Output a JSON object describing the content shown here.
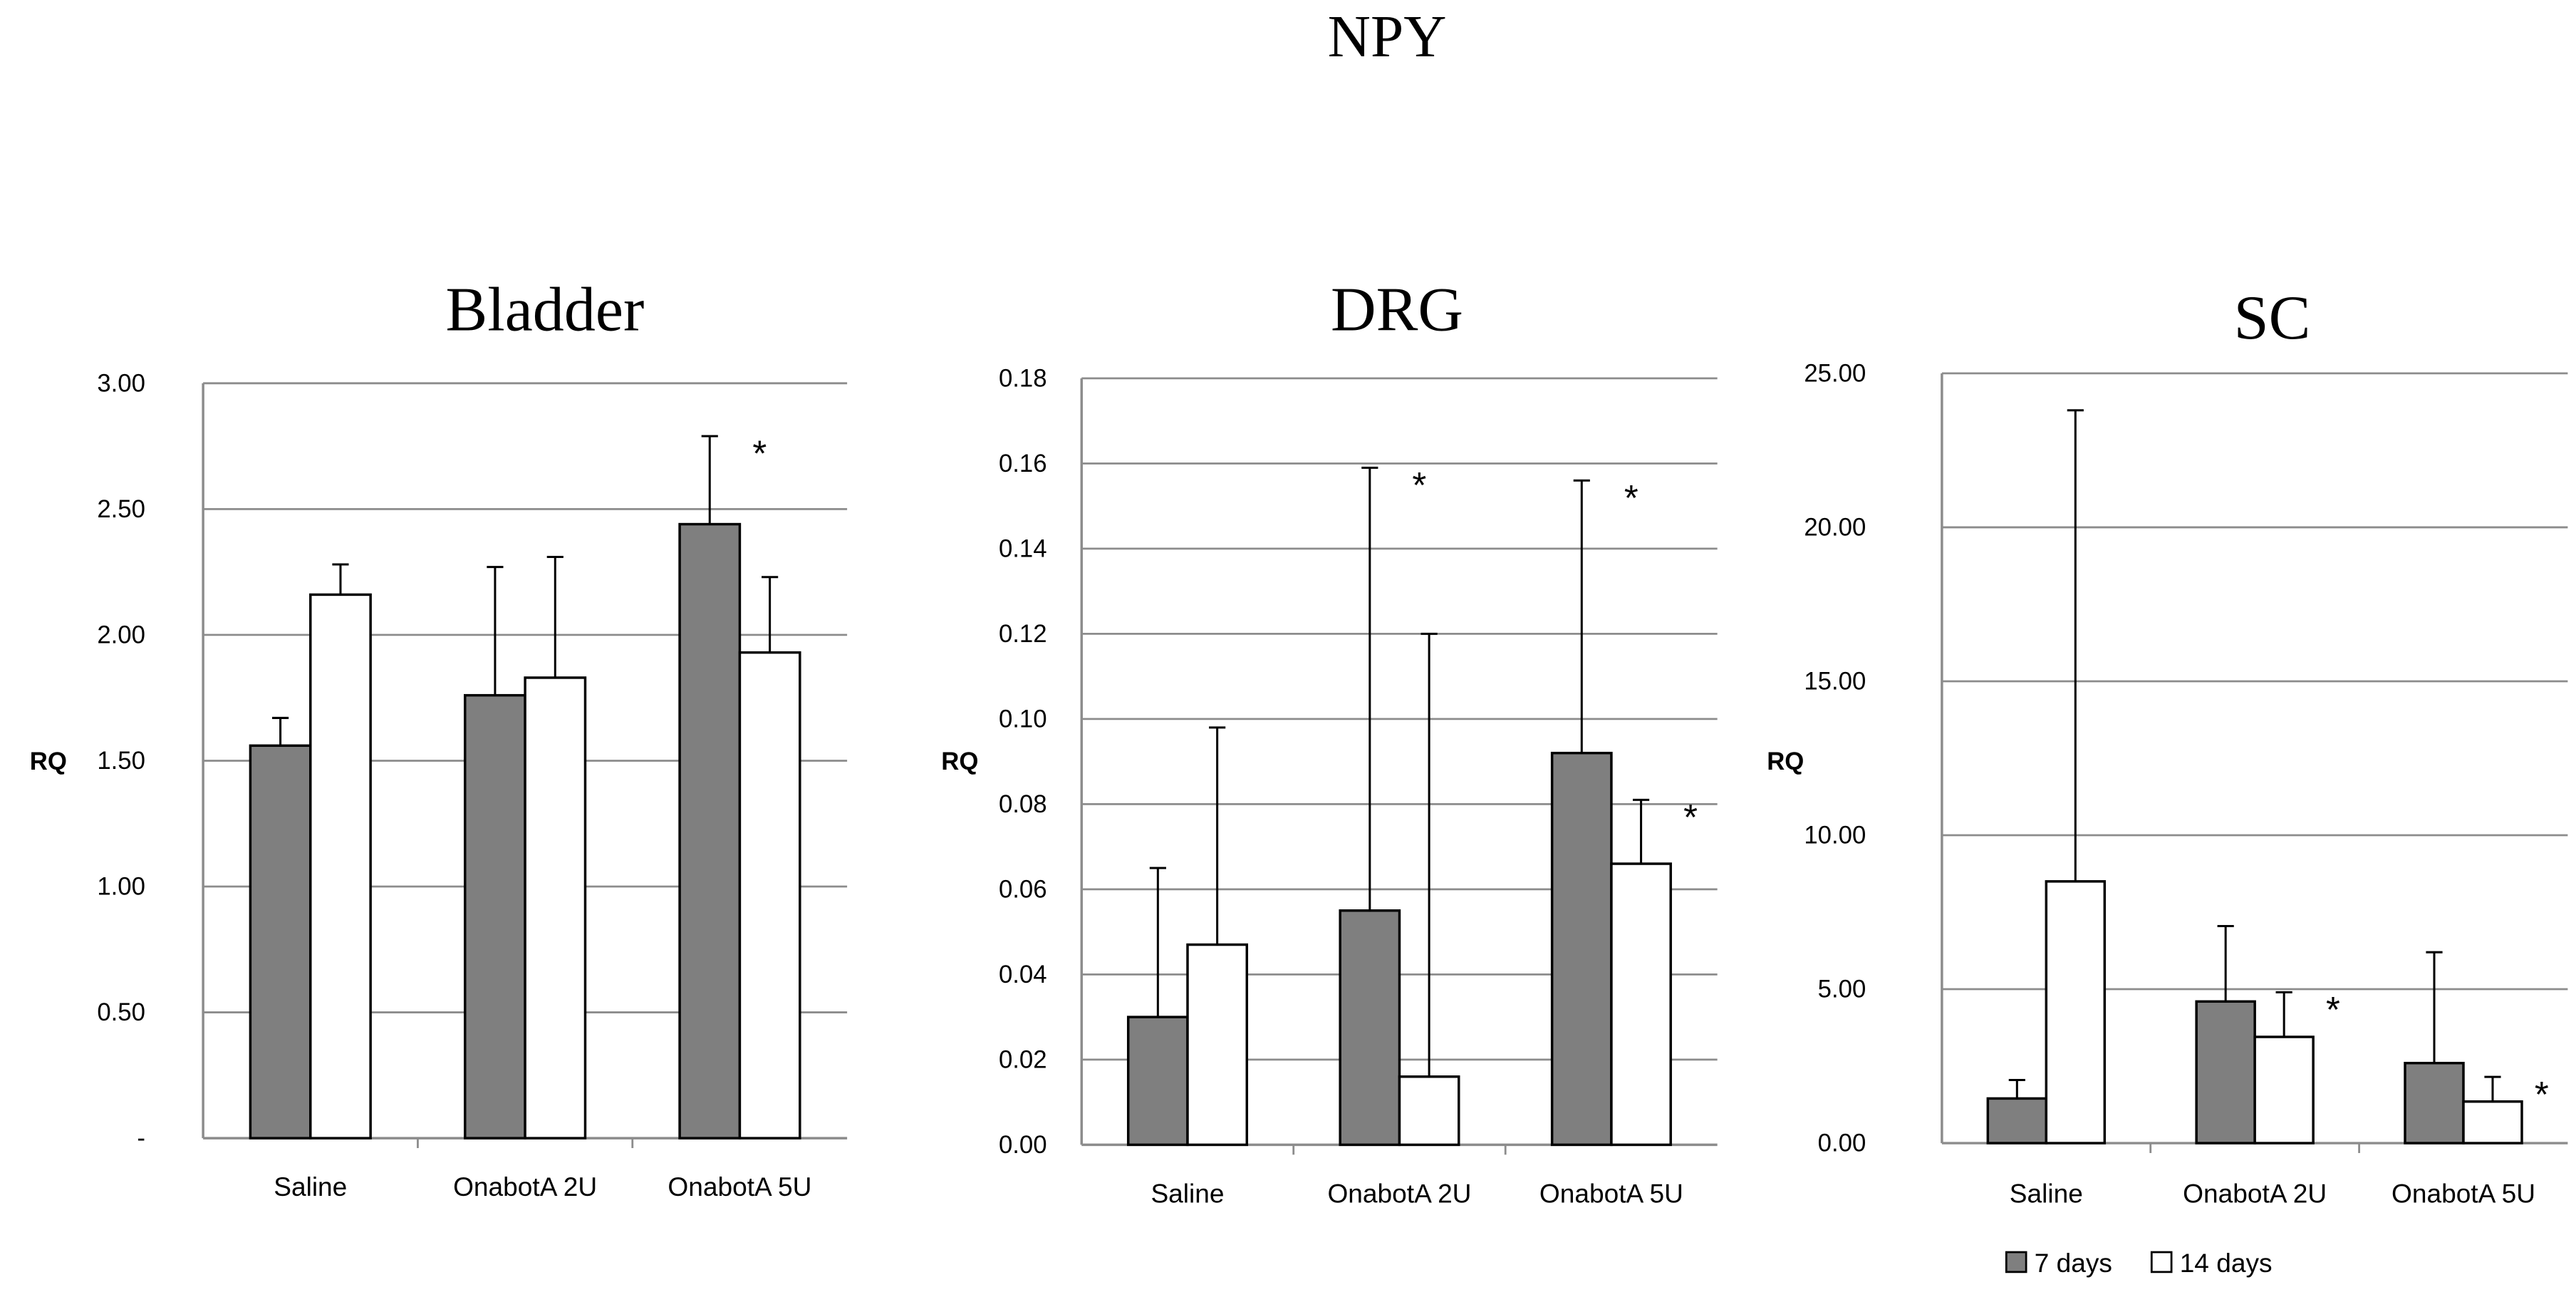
{
  "figure_title": "NPY",
  "legend": [
    {
      "label": "7 days",
      "color": "#7f7f7f"
    },
    {
      "label": "14 days",
      "color": "#ffffff"
    }
  ],
  "colors": {
    "series_7_days": "#7f7f7f",
    "series_14_days": "#ffffff",
    "gridline": "#8c8c8c",
    "edge": "#000000"
  },
  "chart_data": [
    {
      "type": "bar",
      "title": "Bladder",
      "ylabel": "RQ",
      "xlabel": "",
      "categories": [
        "Saline",
        "OnabotA 2U",
        "OnabotA 5U"
      ],
      "ylim": [
        0,
        3
      ],
      "yticks": [
        0,
        0.5,
        1,
        1.5,
        2,
        2.5,
        3
      ],
      "ytick_labels": [
        "-",
        "0.50",
        "1.00",
        "1.50",
        "2.00",
        "2.50",
        "3.00"
      ],
      "grid": true,
      "series": [
        {
          "name": "7 days",
          "values": [
            1.56,
            1.76,
            2.44
          ],
          "error_upper": [
            0.11,
            0.51,
            0.35
          ],
          "significant": [
            false,
            false,
            true
          ]
        },
        {
          "name": "14 days",
          "values": [
            2.16,
            1.83,
            1.93
          ],
          "error_upper": [
            0.12,
            0.48,
            0.3
          ],
          "significant": [
            false,
            false,
            false
          ]
        }
      ],
      "annotations": [
        "*"
      ]
    },
    {
      "type": "bar",
      "title": "DRG",
      "ylabel": "RQ",
      "xlabel": "",
      "categories": [
        "Saline",
        "OnabotA 2U",
        "OnabotA 5U"
      ],
      "ylim": [
        0,
        0.18
      ],
      "yticks": [
        0,
        0.02,
        0.04,
        0.06,
        0.08,
        0.1,
        0.12,
        0.14,
        0.16,
        0.18
      ],
      "ytick_labels": [
        "0.00",
        "0.02",
        "0.04",
        "0.06",
        "0.08",
        "0.10",
        "0.12",
        "0.14",
        "0.16",
        "0.18"
      ],
      "grid": true,
      "series": [
        {
          "name": "7 days",
          "values": [
            0.03,
            0.055,
            0.092
          ],
          "error_upper": [
            0.035,
            0.104,
            0.064
          ],
          "significant": [
            false,
            true,
            true
          ]
        },
        {
          "name": "14 days",
          "values": [
            0.047,
            0.016,
            0.066
          ],
          "error_upper": [
            0.051,
            0.104,
            0.015
          ],
          "significant": [
            false,
            false,
            true
          ]
        }
      ],
      "annotations": [
        "*",
        "*",
        "*"
      ]
    },
    {
      "type": "bar",
      "title": "SC",
      "ylabel": "RQ",
      "xlabel": "",
      "categories": [
        "Saline",
        "OnabotA 2U",
        "OnabotA 5U"
      ],
      "ylim": [
        0,
        25
      ],
      "yticks": [
        0,
        5,
        10,
        15,
        20,
        25
      ],
      "ytick_labels": [
        "0.00",
        "5.00",
        "10.00",
        "15.00",
        "20.00",
        "25.00"
      ],
      "grid": true,
      "series": [
        {
          "name": "7 days",
          "values": [
            1.45,
            4.6,
            2.6
          ],
          "error_upper": [
            0.6,
            2.45,
            3.6
          ],
          "significant": [
            false,
            false,
            false
          ]
        },
        {
          "name": "14 days",
          "values": [
            8.5,
            3.45,
            1.35
          ],
          "error_upper": [
            15.3,
            1.45,
            0.8
          ],
          "significant": [
            false,
            true,
            true
          ]
        }
      ],
      "annotations": [
        "*",
        "*"
      ]
    }
  ]
}
